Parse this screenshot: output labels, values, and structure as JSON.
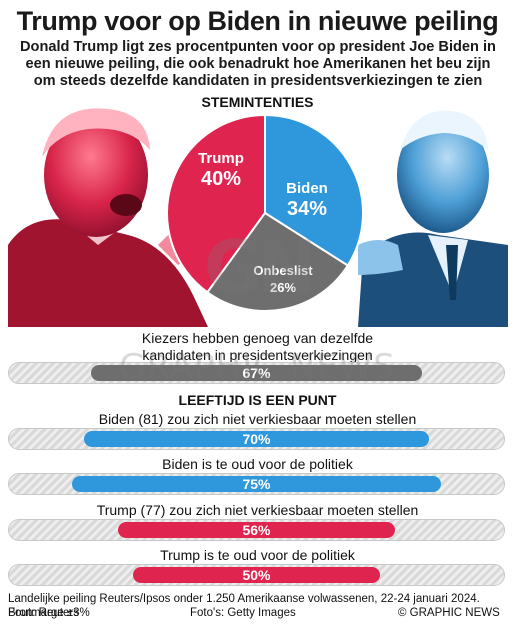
{
  "header": {
    "title": "Trump voor op Biden in nieuwe peiling",
    "subtitle": "Donald Trump ligt zes procentpunten voor op president Joe Biden in een nieuwe peiling, die ook benadrukt hoe Amerikanen het beu zijn om steeds dezelfde kandidaten in presidentsverkiezingen te zien"
  },
  "colors": {
    "trump": "#e02450",
    "biden": "#2f97dc",
    "undecided": "#6e6e6e",
    "track": "#d9d9d9"
  },
  "icons": {
    "trump_photo": "trump-portrait",
    "biden_photo": "biden-portrait"
  },
  "watermark": {
    "logo": "GN",
    "text": "GRAPHIC NEWS"
  },
  "chart_data": [
    {
      "type": "pie",
      "title": "STEMINTENTIES",
      "slices": [
        {
          "label": "Trump",
          "value": 40,
          "display": "40%",
          "color": "#e02450"
        },
        {
          "label": "Biden",
          "value": 34,
          "display": "34%",
          "color": "#2f97dc"
        },
        {
          "label": "Onbeslist",
          "value": 26,
          "display": "26%",
          "color": "#6e6e6e"
        }
      ]
    },
    {
      "type": "bar",
      "orientation": "horizontal",
      "title": "Kiezers hebben genoeg van dezelfde kandidaten in presidentsverkiezingen",
      "categories": [
        "Kiezers hebben genoeg van dezelfde kandidaten in presidentsverkiezingen"
      ],
      "values": [
        67
      ],
      "display": [
        "67%"
      ],
      "color": "#6e6e6e",
      "xlim": [
        0,
        100
      ]
    },
    {
      "type": "bar",
      "orientation": "horizontal",
      "title": "LEEFTIJD IS EEN PUNT",
      "categories": [
        "Biden (81) zou zich niet verkiesbaar moeten stellen",
        "Biden is te oud voor de politiek",
        "Trump (77) zou zich niet verkiesbaar moeten stellen",
        "Trump is te oud voor de politiek"
      ],
      "values": [
        70,
        75,
        56,
        50
      ],
      "display": [
        "70%",
        "75%",
        "56%",
        "50%"
      ],
      "colors": [
        "#2f97dc",
        "#2f97dc",
        "#e02450",
        "#e02450"
      ],
      "xlim": [
        0,
        100
      ]
    }
  ],
  "footer": {
    "note": "Landelijke peiling Reuters/Ipsos onder 1.250 Amerikaanse volwassenen, 22-24 januari 2024. Foutmarge ±3%",
    "source": "Bron: Reuters",
    "photos": "Foto's: Getty Images",
    "copyright": "© GRAPHIC NEWS"
  }
}
